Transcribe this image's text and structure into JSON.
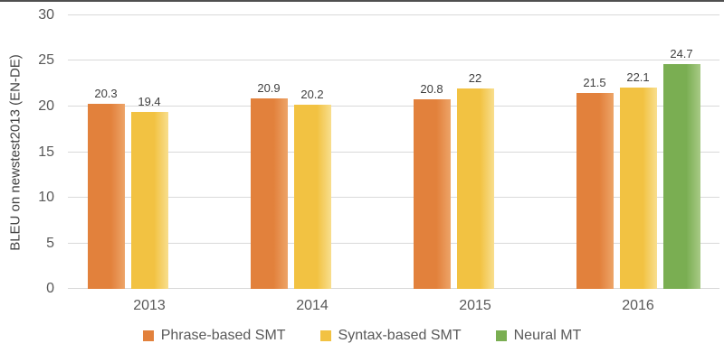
{
  "page": {
    "top_border_color": "#4f4f4f",
    "background_color": "#ffffff"
  },
  "chart_data": {
    "type": "bar",
    "title": "",
    "xlabel": "",
    "ylabel": "BLEU on newstest2013 (EN-DE)",
    "ylim": [
      0,
      30
    ],
    "yticks": [
      30,
      25,
      20,
      15,
      10,
      5,
      0
    ],
    "grid": true,
    "gridline_color": "#d9d9d9",
    "axis_text_color": "#595959",
    "data_label_color": "#3f3f3f",
    "legend_position": "bottom",
    "categories": [
      "2013",
      "2014",
      "2015",
      "2016"
    ],
    "series": [
      {
        "name": "Phrase-based SMT",
        "color": "#e2813c",
        "color_light": "#eda468",
        "values": [
          20.3,
          20.9,
          20.8,
          21.5
        ],
        "labels": [
          "20.3",
          "20.9",
          "20.8",
          "21.5"
        ]
      },
      {
        "name": "Syntax-based SMT",
        "color": "#f2c242",
        "color_light": "#f8de8e",
        "values": [
          19.4,
          20.2,
          22,
          22.1
        ],
        "labels": [
          "19.4",
          "20.2",
          "22",
          "22.1"
        ]
      },
      {
        "name": "Neural MT",
        "color": "#7aae52",
        "color_light": "#a8ca86",
        "values": [
          null,
          null,
          null,
          24.7
        ],
        "labels": [
          null,
          null,
          null,
          "24.7"
        ]
      }
    ]
  }
}
